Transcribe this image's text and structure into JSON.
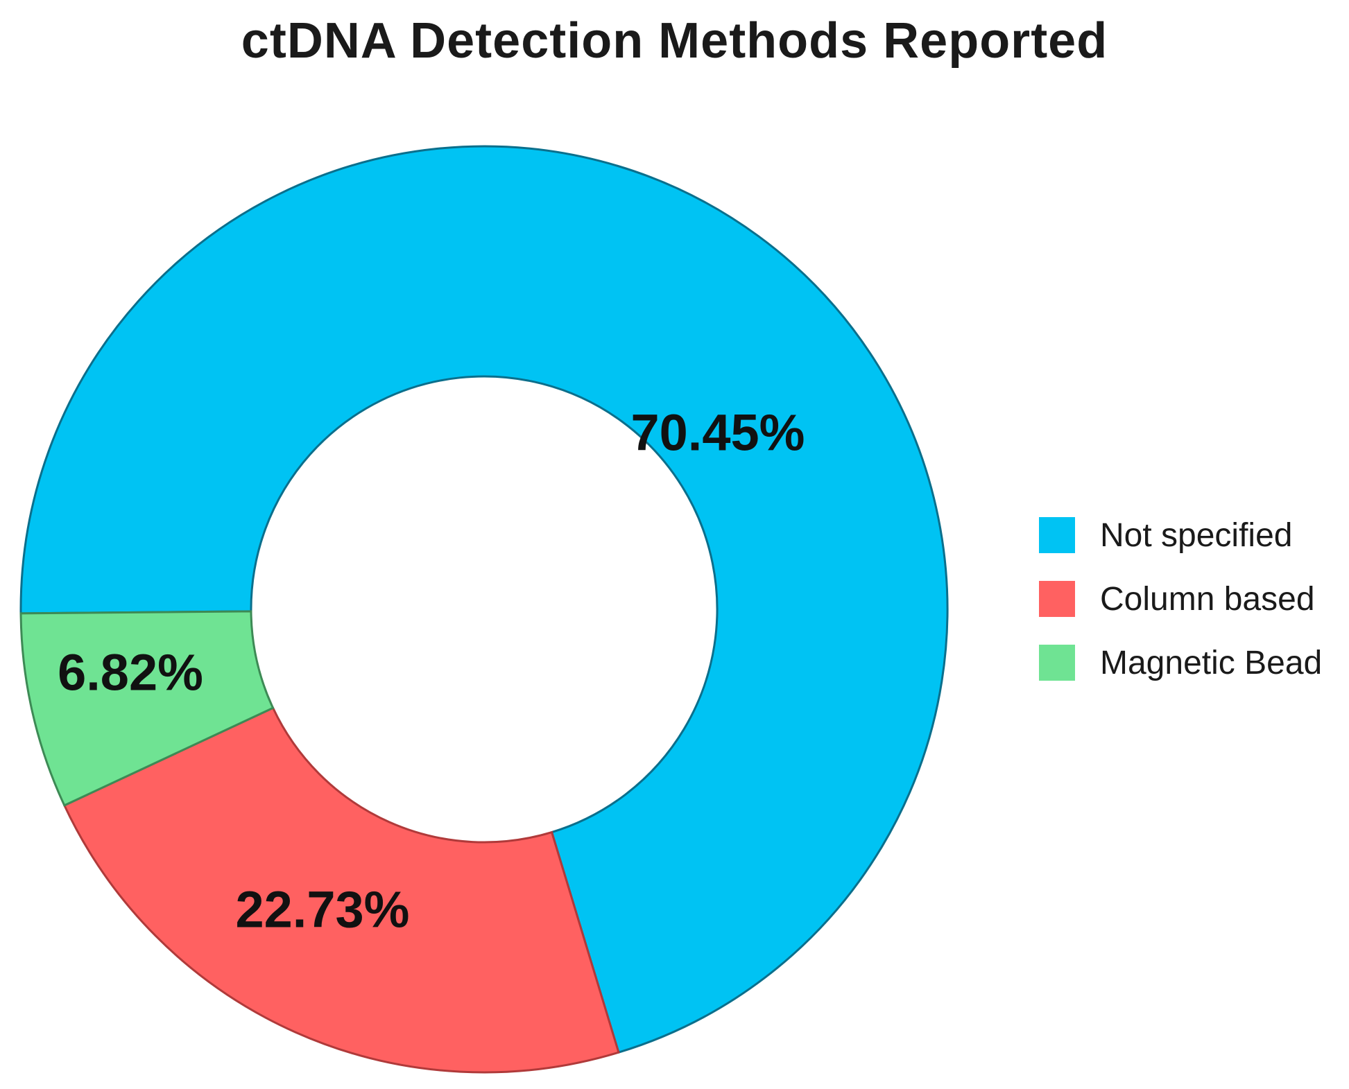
{
  "chart_data": {
    "type": "pie",
    "title": "ctDNA Detection Methods Reported",
    "donut": true,
    "labels": [
      "Not specified",
      "Column based",
      "Magnetic Bead"
    ],
    "values": [
      70.45,
      22.73,
      6.82
    ],
    "value_labels": [
      "70.45%",
      "22.73%",
      "6.82%"
    ],
    "colors": [
      "#00c3f3",
      "#ff6161",
      "#6fe393"
    ],
    "stroke_colors": [
      "#0b6f8c",
      "#b03a3a",
      "#3d8a55"
    ],
    "legend_position": "right"
  }
}
